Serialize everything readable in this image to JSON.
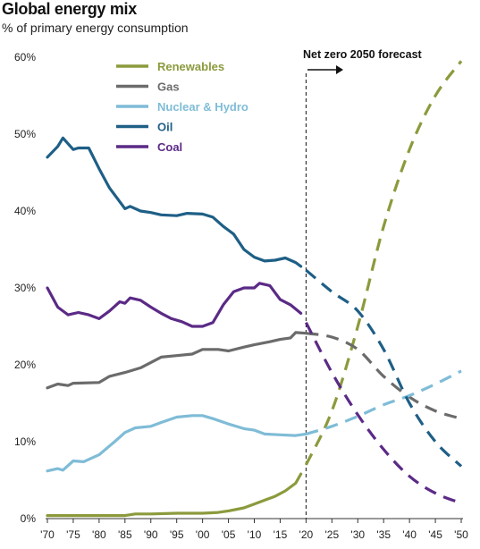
{
  "chart_data": {
    "type": "line",
    "title": "Global energy mix",
    "subtitle": "% of primary energy consumption",
    "xlabel": "",
    "ylabel": "",
    "xlim": [
      1970,
      2050
    ],
    "ylim": [
      0,
      60
    ],
    "x_ticks": [
      "'70",
      "'75",
      "'80",
      "'85",
      "'90",
      "'95",
      "'00",
      "'05",
      "'10",
      "'15",
      "'20",
      "'25",
      "'30",
      "'35",
      "'40",
      "'45",
      "'50"
    ],
    "y_ticks": [
      "0%",
      "10%",
      "20%",
      "30%",
      "40%",
      "50%",
      "60%"
    ],
    "annotation": "Net zero 2050 forecast",
    "forecast_start": 2020,
    "legend_position": "top-center",
    "series": [
      {
        "name": "Renewables",
        "color": "#8c9a3c",
        "historical": [
          [
            1970,
            0.4
          ],
          [
            1975,
            0.4
          ],
          [
            1980,
            0.4
          ],
          [
            1985,
            0.4
          ],
          [
            1987,
            0.6
          ],
          [
            1990,
            0.6
          ],
          [
            1995,
            0.7
          ],
          [
            2000,
            0.7
          ],
          [
            2003,
            0.8
          ],
          [
            2005,
            1.0
          ],
          [
            2008,
            1.4
          ],
          [
            2010,
            1.9
          ],
          [
            2012,
            2.4
          ],
          [
            2014,
            2.9
          ],
          [
            2016,
            3.6
          ],
          [
            2018,
            4.6
          ],
          [
            2019,
            5.8
          ]
        ],
        "forecast": [
          [
            2020,
            7
          ],
          [
            2025,
            14
          ],
          [
            2030,
            25
          ],
          [
            2035,
            38
          ],
          [
            2040,
            48
          ],
          [
            2045,
            55
          ],
          [
            2050,
            59.5
          ]
        ]
      },
      {
        "name": "Gas",
        "color": "#6b6b6b",
        "historical": [
          [
            1970,
            17
          ],
          [
            1972,
            17.5
          ],
          [
            1974,
            17.3
          ],
          [
            1975,
            17.6
          ],
          [
            1980,
            17.7
          ],
          [
            1982,
            18.5
          ],
          [
            1985,
            19
          ],
          [
            1988,
            19.6
          ],
          [
            1990,
            20.3
          ],
          [
            1992,
            21
          ],
          [
            1995,
            21.2
          ],
          [
            1998,
            21.4
          ],
          [
            2000,
            22
          ],
          [
            2003,
            22
          ],
          [
            2005,
            21.8
          ],
          [
            2008,
            22.3
          ],
          [
            2010,
            22.6
          ],
          [
            2013,
            23
          ],
          [
            2015,
            23.3
          ],
          [
            2017,
            23.5
          ],
          [
            2018,
            24.2
          ],
          [
            2020,
            24.1
          ]
        ],
        "forecast": [
          [
            2020,
            24.1
          ],
          [
            2025,
            23.6
          ],
          [
            2030,
            22
          ],
          [
            2035,
            18.5
          ],
          [
            2040,
            15.8
          ],
          [
            2045,
            14
          ],
          [
            2050,
            13
          ]
        ]
      },
      {
        "name": "Nuclear & Hydro",
        "color": "#7fbcd7",
        "historical": [
          [
            1970,
            6.2
          ],
          [
            1972,
            6.5
          ],
          [
            1973,
            6.3
          ],
          [
            1975,
            7.5
          ],
          [
            1977,
            7.4
          ],
          [
            1980,
            8.3
          ],
          [
            1983,
            10
          ],
          [
            1985,
            11.2
          ],
          [
            1987,
            11.8
          ],
          [
            1990,
            12
          ],
          [
            1992,
            12.5
          ],
          [
            1995,
            13.2
          ],
          [
            1998,
            13.4
          ],
          [
            2000,
            13.4
          ],
          [
            2002,
            13
          ],
          [
            2005,
            12.3
          ],
          [
            2008,
            11.7
          ],
          [
            2010,
            11.5
          ],
          [
            2012,
            11
          ],
          [
            2015,
            10.9
          ],
          [
            2018,
            10.8
          ],
          [
            2020,
            11
          ]
        ],
        "forecast": [
          [
            2020,
            11
          ],
          [
            2025,
            12
          ],
          [
            2030,
            13.3
          ],
          [
            2035,
            14.8
          ],
          [
            2040,
            16
          ],
          [
            2045,
            17.5
          ],
          [
            2050,
            19.2
          ]
        ]
      },
      {
        "name": "Oil",
        "color": "#1e5f86",
        "historical": [
          [
            1970,
            47
          ],
          [
            1972,
            48.4
          ],
          [
            1973,
            49.5
          ],
          [
            1975,
            48
          ],
          [
            1976,
            48.2
          ],
          [
            1978,
            48.2
          ],
          [
            1980,
            45.5
          ],
          [
            1982,
            43
          ],
          [
            1985,
            40.3
          ],
          [
            1986,
            40.6
          ],
          [
            1988,
            40
          ],
          [
            1990,
            39.8
          ],
          [
            1992,
            39.5
          ],
          [
            1995,
            39.4
          ],
          [
            1997,
            39.7
          ],
          [
            2000,
            39.6
          ],
          [
            2002,
            39.2
          ],
          [
            2004,
            38
          ],
          [
            2006,
            37
          ],
          [
            2008,
            35
          ],
          [
            2010,
            34
          ],
          [
            2012,
            33.5
          ],
          [
            2014,
            33.6
          ],
          [
            2016,
            33.9
          ],
          [
            2018,
            33.3
          ],
          [
            2019,
            32.8
          ]
        ],
        "forecast": [
          [
            2020,
            32.3
          ],
          [
            2025,
            29.5
          ],
          [
            2030,
            27
          ],
          [
            2035,
            22
          ],
          [
            2040,
            15
          ],
          [
            2045,
            10
          ],
          [
            2050,
            6.8
          ]
        ]
      },
      {
        "name": "Coal",
        "color": "#5b2a86",
        "historical": [
          [
            1970,
            30
          ],
          [
            1972,
            27.5
          ],
          [
            1974,
            26.5
          ],
          [
            1976,
            26.8
          ],
          [
            1978,
            26.5
          ],
          [
            1980,
            26
          ],
          [
            1982,
            27
          ],
          [
            1984,
            28.2
          ],
          [
            1985,
            28
          ],
          [
            1986,
            28.7
          ],
          [
            1988,
            28.4
          ],
          [
            1990,
            27.5
          ],
          [
            1992,
            26.7
          ],
          [
            1994,
            26
          ],
          [
            1996,
            25.6
          ],
          [
            1998,
            25
          ],
          [
            2000,
            25
          ],
          [
            2002,
            25.5
          ],
          [
            2004,
            27.8
          ],
          [
            2006,
            29.5
          ],
          [
            2008,
            30
          ],
          [
            2010,
            30
          ],
          [
            2011,
            30.6
          ],
          [
            2013,
            30.3
          ],
          [
            2015,
            28.5
          ],
          [
            2017,
            27.8
          ],
          [
            2019,
            26.7
          ]
        ],
        "forecast": [
          [
            2020,
            25.5
          ],
          [
            2025,
            19
          ],
          [
            2030,
            13.5
          ],
          [
            2035,
            9
          ],
          [
            2040,
            5.5
          ],
          [
            2045,
            3.3
          ],
          [
            2050,
            2
          ]
        ]
      }
    ]
  }
}
